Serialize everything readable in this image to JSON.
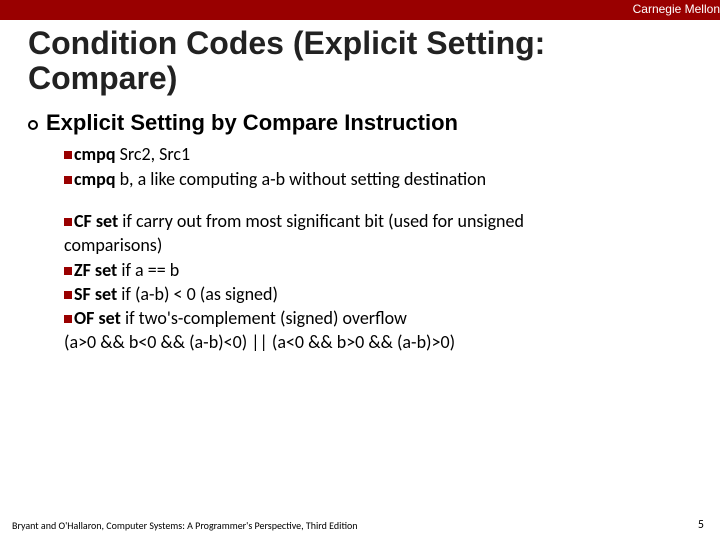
{
  "colors": {
    "brand_bar": "#990000",
    "bullet_square": "#990000",
    "topbar_text": "#ffffff",
    "title_text": "#222222",
    "body_text": "#000000"
  },
  "header": {
    "institution": "Carnegie Mellon"
  },
  "title_line1": "Condition Codes (Explicit Setting:",
  "title_line2": " Compare)",
  "section_heading": "Explicit Setting by Compare Instruction",
  "bullets_a": [
    {
      "lead": "cmpq",
      "rest": " Src2, Src1"
    },
    {
      "lead": "cmpq",
      "rest": " b, a like computing a-b without setting destination"
    }
  ],
  "bullets_b": [
    {
      "lead": "CF set",
      "rest": " if carry out from most significant bit (used for unsigned",
      "cont": "comparisons)"
    },
    {
      "lead": "ZF set",
      "rest": " if a == b"
    },
    {
      "lead": "SF set",
      "rest": " if (a-b) < 0 (as signed)"
    },
    {
      "lead": "OF set",
      "rest": " if two's-complement (signed) overflow",
      "cont": "(a>0 && b<0 && (a-b)<0) || (a<0 && b>0 && (a-b)>0)"
    }
  ],
  "footer": {
    "left": "Bryant and O'Hallaron, Computer Systems: A Programmer's Perspective, Third Edition",
    "page": "5"
  }
}
